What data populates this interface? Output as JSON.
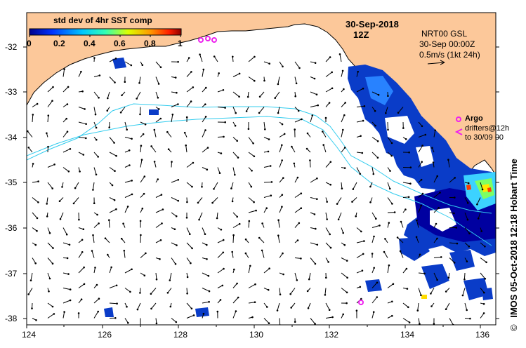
{
  "colorbar": {
    "title": "std dev of 4hr SST comp",
    "ticks": [
      "0",
      "0.2",
      "0.4",
      "0.6",
      "0.8",
      "1"
    ]
  },
  "header": {
    "date": "30-Sep-2018",
    "time": "12Z"
  },
  "current_info": {
    "line1": "NRT00 GSL",
    "line2": "30-Sep 00:00Z",
    "line3": "0.5m/s (1kt 24h)"
  },
  "legend": {
    "argo": "Argo",
    "drifters": "drifters@12h",
    "drifters_to": "to 30/09 00"
  },
  "side_label": "IMOS 05-Oct-2018 12:18 Hobart Time",
  "copyright": "©",
  "axes": {
    "lon_ticks": [
      "124",
      "126",
      "128",
      "130",
      "132",
      "134",
      "136"
    ],
    "lat_ticks": [
      "-32",
      "-33",
      "-34",
      "-35",
      "-36",
      "-37",
      "-38"
    ]
  },
  "colors": {
    "land": "#fcc89a",
    "contour": "#33ccee",
    "argo": "#ee22ee"
  }
}
